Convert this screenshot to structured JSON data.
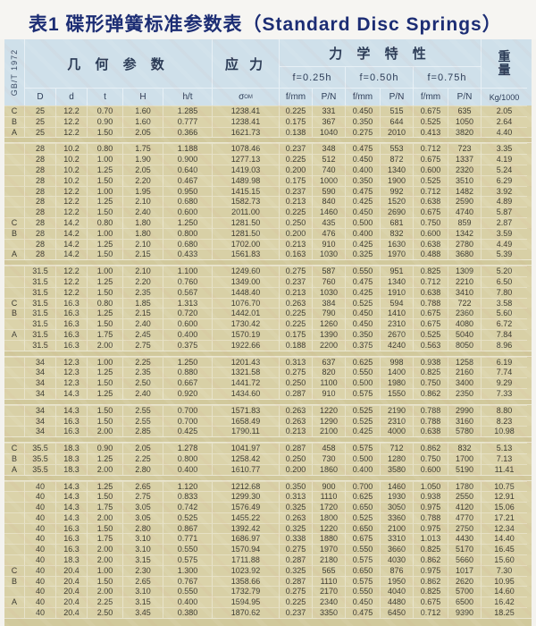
{
  "title": "表1 碟形弹簧标准参数表（Standard Disc Springs）",
  "standard_label": "GB/T 1972",
  "header": {
    "geometry": "几 何 参 数",
    "stress": "应 力",
    "mechanical": "力 学 特 性",
    "weight_char_top": "重",
    "weight_char_bottom": "量",
    "deflections": [
      "f=0.25h",
      "f=0.50h",
      "f=0.75h"
    ],
    "columns": [
      "D",
      "d",
      "t",
      "H",
      "h/t",
      {
        "main": "σ",
        "sub": "OM"
      },
      "f/mm",
      "P/N",
      "f/mm",
      "P/N",
      "f/mm",
      "P/N",
      "Kg/1000"
    ]
  },
  "colors": {
    "header_bg": "#cfe0ea",
    "body_bg": "#d8d0a6",
    "gap_bg": "#d1c99c",
    "title_navy": "#1c2d74",
    "cell_text": "#3d3c33"
  },
  "table": {
    "rows": [
      [
        "C",
        "25",
        "12.2",
        "0.70",
        "1.60",
        "1.285",
        "1238.41",
        "0.225",
        "331",
        "0.450",
        "515",
        "0.675",
        "635",
        "2.05"
      ],
      [
        "B",
        "25",
        "12.2",
        "0.90",
        "1.60",
        "0.777",
        "1238.41",
        "0.175",
        "367",
        "0.350",
        "644",
        "0.525",
        "1050",
        "2.64"
      ],
      [
        "A",
        "25",
        "12.2",
        "1.50",
        "2.05",
        "0.366",
        "1621.73",
        "0.138",
        "1040",
        "0.275",
        "2010",
        "0.413",
        "3820",
        "4.40"
      ],
      "GAP",
      [
        "",
        "28",
        "10.2",
        "0.80",
        "1.75",
        "1.188",
        "1078.46",
        "0.237",
        "348",
        "0.475",
        "553",
        "0.712",
        "723",
        "3.35"
      ],
      [
        "",
        "28",
        "10.2",
        "1.00",
        "1.90",
        "0.900",
        "1277.13",
        "0.225",
        "512",
        "0.450",
        "872",
        "0.675",
        "1337",
        "4.19"
      ],
      [
        "",
        "28",
        "10.2",
        "1.25",
        "2.05",
        "0.640",
        "1419.03",
        "0.200",
        "740",
        "0.400",
        "1340",
        "0.600",
        "2320",
        "5.24"
      ],
      [
        "",
        "28",
        "10.2",
        "1.50",
        "2.20",
        "0.467",
        "1489.98",
        "0.175",
        "1000",
        "0.350",
        "1900",
        "0.525",
        "3510",
        "6.29"
      ],
      [
        "",
        "28",
        "12.2",
        "1.00",
        "1.95",
        "0.950",
        "1415.15",
        "0.237",
        "590",
        "0.475",
        "992",
        "0.712",
        "1482",
        "3.92"
      ],
      [
        "",
        "28",
        "12.2",
        "1.25",
        "2.10",
        "0.680",
        "1582.73",
        "0.213",
        "840",
        "0.425",
        "1520",
        "0.638",
        "2590",
        "4.89"
      ],
      [
        "",
        "28",
        "12.2",
        "1.50",
        "2.40",
        "0.600",
        "2011.00",
        "0.225",
        "1460",
        "0.450",
        "2690",
        "0.675",
        "4740",
        "5.87"
      ],
      [
        "C",
        "28",
        "14.2",
        "0.80",
        "1.80",
        "1.250",
        "1281.50",
        "0.250",
        "435",
        "0.500",
        "681",
        "0.750",
        "859",
        "2.87"
      ],
      [
        "B",
        "28",
        "14.2",
        "1.00",
        "1.80",
        "0.800",
        "1281.50",
        "0.200",
        "476",
        "0.400",
        "832",
        "0.600",
        "1342",
        "3.59"
      ],
      [
        "",
        "28",
        "14.2",
        "1.25",
        "2.10",
        "0.680",
        "1702.00",
        "0.213",
        "910",
        "0.425",
        "1630",
        "0.638",
        "2780",
        "4.49"
      ],
      [
        "A",
        "28",
        "14.2",
        "1.50",
        "2.15",
        "0.433",
        "1561.83",
        "0.163",
        "1030",
        "0.325",
        "1970",
        "0.488",
        "3680",
        "5.39"
      ],
      "GAP",
      [
        "",
        "31.5",
        "12.2",
        "1.00",
        "2.10",
        "1.100",
        "1249.60",
        "0.275",
        "587",
        "0.550",
        "951",
        "0.825",
        "1309",
        "5.20"
      ],
      [
        "",
        "31.5",
        "12.2",
        "1.25",
        "2.20",
        "0.760",
        "1349.00",
        "0.237",
        "760",
        "0.475",
        "1340",
        "0.712",
        "2210",
        "6.50"
      ],
      [
        "",
        "31.5",
        "12.2",
        "1.50",
        "2.35",
        "0.567",
        "1448.40",
        "0.213",
        "1030",
        "0.425",
        "1910",
        "0.638",
        "3410",
        "7.80"
      ],
      [
        "C",
        "31.5",
        "16.3",
        "0.80",
        "1.85",
        "1.313",
        "1076.70",
        "0.263",
        "384",
        "0.525",
        "594",
        "0.788",
        "722",
        "3.58"
      ],
      [
        "B",
        "31.5",
        "16.3",
        "1.25",
        "2.15",
        "0.720",
        "1442.01",
        "0.225",
        "790",
        "0.450",
        "1410",
        "0.675",
        "2360",
        "5.60"
      ],
      [
        "",
        "31.5",
        "16.3",
        "1.50",
        "2.40",
        "0.600",
        "1730.42",
        "0.225",
        "1260",
        "0.450",
        "2310",
        "0.675",
        "4080",
        "6.72"
      ],
      [
        "A",
        "31.5",
        "16.3",
        "1.75",
        "2.45",
        "0.400",
        "1570.19",
        "0.175",
        "1390",
        "0.350",
        "2670",
        "0.525",
        "5040",
        "7.84"
      ],
      [
        "",
        "31.5",
        "16.3",
        "2.00",
        "2.75",
        "0.375",
        "1922.66",
        "0.188",
        "2200",
        "0.375",
        "4240",
        "0.563",
        "8050",
        "8.96"
      ],
      "GAP",
      [
        "",
        "34",
        "12.3",
        "1.00",
        "2.25",
        "1.250",
        "1201.43",
        "0.313",
        "637",
        "0.625",
        "998",
        "0.938",
        "1258",
        "6.19"
      ],
      [
        "",
        "34",
        "12.3",
        "1.25",
        "2.35",
        "0.880",
        "1321.58",
        "0.275",
        "820",
        "0.550",
        "1400",
        "0.825",
        "2160",
        "7.74"
      ],
      [
        "",
        "34",
        "12.3",
        "1.50",
        "2.50",
        "0.667",
        "1441.72",
        "0.250",
        "1100",
        "0.500",
        "1980",
        "0.750",
        "3400",
        "9.29"
      ],
      [
        "",
        "34",
        "14.3",
        "1.25",
        "2.40",
        "0.920",
        "1434.60",
        "0.287",
        "910",
        "0.575",
        "1550",
        "0.862",
        "2350",
        "7.33"
      ],
      "GAP",
      [
        "",
        "34",
        "14.3",
        "1.50",
        "2.55",
        "0.700",
        "1571.83",
        "0.263",
        "1220",
        "0.525",
        "2190",
        "0.788",
        "2990",
        "8.80"
      ],
      [
        "",
        "34",
        "16.3",
        "1.50",
        "2.55",
        "0.700",
        "1658.49",
        "0.263",
        "1290",
        "0.525",
        "2310",
        "0.788",
        "3160",
        "8.23"
      ],
      [
        "",
        "34",
        "16.3",
        "2.00",
        "2.85",
        "0.425",
        "1790.11",
        "0.213",
        "2100",
        "0.425",
        "4000",
        "0.638",
        "5780",
        "10.98"
      ],
      "GAP",
      [
        "C",
        "35.5",
        "18.3",
        "0.90",
        "2.05",
        "1.278",
        "1041.97",
        "0.287",
        "458",
        "0.575",
        "712",
        "0.862",
        "832",
        "5.13"
      ],
      [
        "B",
        "35.5",
        "18.3",
        "1.25",
        "2.25",
        "0.800",
        "1258.42",
        "0.250",
        "730",
        "0.500",
        "1280",
        "0.750",
        "1700",
        "7.13"
      ],
      [
        "A",
        "35.5",
        "18.3",
        "2.00",
        "2.80",
        "0.400",
        "1610.77",
        "0.200",
        "1860",
        "0.400",
        "3580",
        "0.600",
        "5190",
        "11.41"
      ],
      "GAP",
      [
        "",
        "40",
        "14.3",
        "1.25",
        "2.65",
        "1.120",
        "1212.68",
        "0.350",
        "900",
        "0.700",
        "1460",
        "1.050",
        "1780",
        "10.75"
      ],
      [
        "",
        "40",
        "14.3",
        "1.50",
        "2.75",
        "0.833",
        "1299.30",
        "0.313",
        "1110",
        "0.625",
        "1930",
        "0.938",
        "2550",
        "12.91"
      ],
      [
        "",
        "40",
        "14.3",
        "1.75",
        "3.05",
        "0.742",
        "1576.49",
        "0.325",
        "1720",
        "0.650",
        "3050",
        "0.975",
        "4120",
        "15.06"
      ],
      [
        "",
        "40",
        "14.3",
        "2.00",
        "3.05",
        "0.525",
        "1455.22",
        "0.263",
        "1800",
        "0.525",
        "3360",
        "0.788",
        "4770",
        "17.21"
      ],
      [
        "",
        "40",
        "16.3",
        "1.50",
        "2.80",
        "0.867",
        "1392.42",
        "0.325",
        "1220",
        "0.650",
        "2100",
        "0.975",
        "2750",
        "12.34"
      ],
      [
        "",
        "40",
        "16.3",
        "1.75",
        "3.10",
        "0.771",
        "1686.97",
        "0.338",
        "1880",
        "0.675",
        "3310",
        "1.013",
        "4430",
        "14.40"
      ],
      [
        "",
        "40",
        "16.3",
        "2.00",
        "3.10",
        "0.550",
        "1570.94",
        "0.275",
        "1970",
        "0.550",
        "3660",
        "0.825",
        "5170",
        "16.45"
      ],
      [
        "",
        "40",
        "18.3",
        "2.00",
        "3.15",
        "0.575",
        "1711.88",
        "0.287",
        "2180",
        "0.575",
        "4030",
        "0.862",
        "5660",
        "15.60"
      ],
      [
        "C",
        "40",
        "20.4",
        "1.00",
        "2.30",
        "1.300",
        "1023.92",
        "0.325",
        "565",
        "0.650",
        "876",
        "0.975",
        "1017",
        "7.30"
      ],
      [
        "B",
        "40",
        "20.4",
        "1.50",
        "2.65",
        "0.767",
        "1358.66",
        "0.287",
        "1110",
        "0.575",
        "1950",
        "0.862",
        "2620",
        "10.95"
      ],
      [
        "",
        "40",
        "20.4",
        "2.00",
        "3.10",
        "0.550",
        "1732.79",
        "0.275",
        "2170",
        "0.550",
        "4040",
        "0.825",
        "5700",
        "14.60"
      ],
      [
        "A",
        "40",
        "20.4",
        "2.25",
        "3.15",
        "0.400",
        "1594.95",
        "0.225",
        "2340",
        "0.450",
        "4480",
        "0.675",
        "6500",
        "16.42"
      ],
      [
        "",
        "40",
        "20.4",
        "2.50",
        "3.45",
        "0.380",
        "1870.62",
        "0.237",
        "3350",
        "0.475",
        "6450",
        "0.712",
        "9390",
        "18.25"
      ]
    ]
  }
}
